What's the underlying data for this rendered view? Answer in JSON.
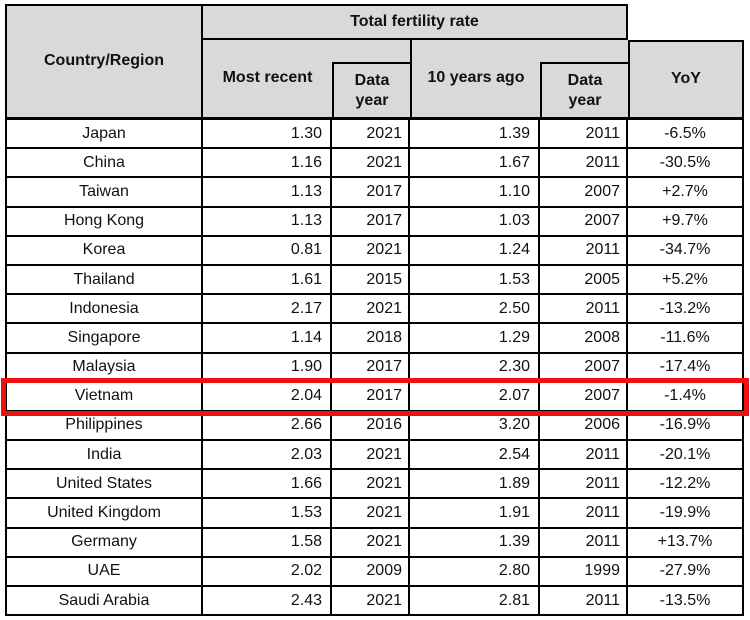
{
  "table": {
    "header": {
      "country_col": "Country/Region",
      "group_header": "Total fertility rate",
      "col_most_recent": "Most recent",
      "col_data_year_1": "Data year",
      "col_10_years_ago": "10 years ago",
      "col_data_year_2": "Data year",
      "col_yoy": "YoY"
    },
    "rows": [
      {
        "country": "Japan",
        "most_recent": "1.30",
        "data_year_1": "2021",
        "ten_years_ago": "1.39",
        "data_year_2": "2011",
        "yoy": "-6.5%",
        "highlighted": false
      },
      {
        "country": "China",
        "most_recent": "1.16",
        "data_year_1": "2021",
        "ten_years_ago": "1.67",
        "data_year_2": "2011",
        "yoy": "-30.5%",
        "highlighted": false
      },
      {
        "country": "Taiwan",
        "most_recent": "1.13",
        "data_year_1": "2017",
        "ten_years_ago": "1.10",
        "data_year_2": "2007",
        "yoy": "+2.7%",
        "highlighted": false
      },
      {
        "country": "Hong Kong",
        "most_recent": "1.13",
        "data_year_1": "2017",
        "ten_years_ago": "1.03",
        "data_year_2": "2007",
        "yoy": "+9.7%",
        "highlighted": false
      },
      {
        "country": "Korea",
        "most_recent": "0.81",
        "data_year_1": "2021",
        "ten_years_ago": "1.24",
        "data_year_2": "2011",
        "yoy": "-34.7%",
        "highlighted": false
      },
      {
        "country": "Thailand",
        "most_recent": "1.61",
        "data_year_1": "2015",
        "ten_years_ago": "1.53",
        "data_year_2": "2005",
        "yoy": "+5.2%",
        "highlighted": false
      },
      {
        "country": "Indonesia",
        "most_recent": "2.17",
        "data_year_1": "2021",
        "ten_years_ago": "2.50",
        "data_year_2": "2011",
        "yoy": "-13.2%",
        "highlighted": false
      },
      {
        "country": "Singapore",
        "most_recent": "1.14",
        "data_year_1": "2018",
        "ten_years_ago": "1.29",
        "data_year_2": "2008",
        "yoy": "-11.6%",
        "highlighted": false
      },
      {
        "country": "Malaysia",
        "most_recent": "1.90",
        "data_year_1": "2017",
        "ten_years_ago": "2.30",
        "data_year_2": "2007",
        "yoy": "-17.4%",
        "highlighted": false
      },
      {
        "country": "Vietnam",
        "most_recent": "2.04",
        "data_year_1": "2017",
        "ten_years_ago": "2.07",
        "data_year_2": "2007",
        "yoy": "-1.4%",
        "highlighted": true
      },
      {
        "country": "Philippines",
        "most_recent": "2.66",
        "data_year_1": "2016",
        "ten_years_ago": "3.20",
        "data_year_2": "2006",
        "yoy": "-16.9%",
        "highlighted": false
      },
      {
        "country": "India",
        "most_recent": "2.03",
        "data_year_1": "2021",
        "ten_years_ago": "2.54",
        "data_year_2": "2011",
        "yoy": "-20.1%",
        "highlighted": false
      },
      {
        "country": "United States",
        "most_recent": "1.66",
        "data_year_1": "2021",
        "ten_years_ago": "1.89",
        "data_year_2": "2011",
        "yoy": "-12.2%",
        "highlighted": false
      },
      {
        "country": "United Kingdom",
        "most_recent": "1.53",
        "data_year_1": "2021",
        "ten_years_ago": "1.91",
        "data_year_2": "2011",
        "yoy": "-19.9%",
        "highlighted": false
      },
      {
        "country": "Germany",
        "most_recent": "1.58",
        "data_year_1": "2021",
        "ten_years_ago": "1.39",
        "data_year_2": "2011",
        "yoy": "+13.7%",
        "highlighted": false
      },
      {
        "country": "UAE",
        "most_recent": "2.02",
        "data_year_1": "2009",
        "ten_years_ago": "2.80",
        "data_year_2": "1999",
        "yoy": "-27.9%",
        "highlighted": false
      },
      {
        "country": "Saudi Arabia",
        "most_recent": "2.43",
        "data_year_1": "2021",
        "ten_years_ago": "2.81",
        "data_year_2": "2011",
        "yoy": "-13.5%",
        "highlighted": false
      }
    ]
  },
  "colors": {
    "header_bg": "#d9d9d9",
    "border": "#000000",
    "highlight_border": "#ee1111"
  },
  "chart_data": {
    "type": "table",
    "title": "Total fertility rate",
    "columns": [
      "Country/Region",
      "Most recent",
      "Data year",
      "10 years ago",
      "Data year",
      "YoY"
    ],
    "rows": [
      [
        "Japan",
        1.3,
        2021,
        1.39,
        2011,
        "-6.5%"
      ],
      [
        "China",
        1.16,
        2021,
        1.67,
        2011,
        "-30.5%"
      ],
      [
        "Taiwan",
        1.13,
        2017,
        1.1,
        2007,
        "+2.7%"
      ],
      [
        "Hong Kong",
        1.13,
        2017,
        1.03,
        2007,
        "+9.7%"
      ],
      [
        "Korea",
        0.81,
        2021,
        1.24,
        2011,
        "-34.7%"
      ],
      [
        "Thailand",
        1.61,
        2015,
        1.53,
        2005,
        "+5.2%"
      ],
      [
        "Indonesia",
        2.17,
        2021,
        2.5,
        2011,
        "-13.2%"
      ],
      [
        "Singapore",
        1.14,
        2018,
        1.29,
        2008,
        "-11.6%"
      ],
      [
        "Malaysia",
        1.9,
        2017,
        2.3,
        2007,
        "-17.4%"
      ],
      [
        "Vietnam",
        2.04,
        2017,
        2.07,
        2007,
        "-1.4%"
      ],
      [
        "Philippines",
        2.66,
        2016,
        3.2,
        2006,
        "-16.9%"
      ],
      [
        "India",
        2.03,
        2021,
        2.54,
        2011,
        "-20.1%"
      ],
      [
        "United States",
        1.66,
        2021,
        1.89,
        2011,
        "-12.2%"
      ],
      [
        "United Kingdom",
        1.53,
        2021,
        1.91,
        2011,
        "-19.9%"
      ],
      [
        "Germany",
        1.58,
        2021,
        1.39,
        2011,
        "+13.7%"
      ],
      [
        "UAE",
        2.02,
        2009,
        2.8,
        1999,
        "-27.9%"
      ],
      [
        "Saudi Arabia",
        2.43,
        2021,
        2.81,
        2011,
        "-13.5%"
      ]
    ],
    "highlighted_row": "Vietnam"
  }
}
